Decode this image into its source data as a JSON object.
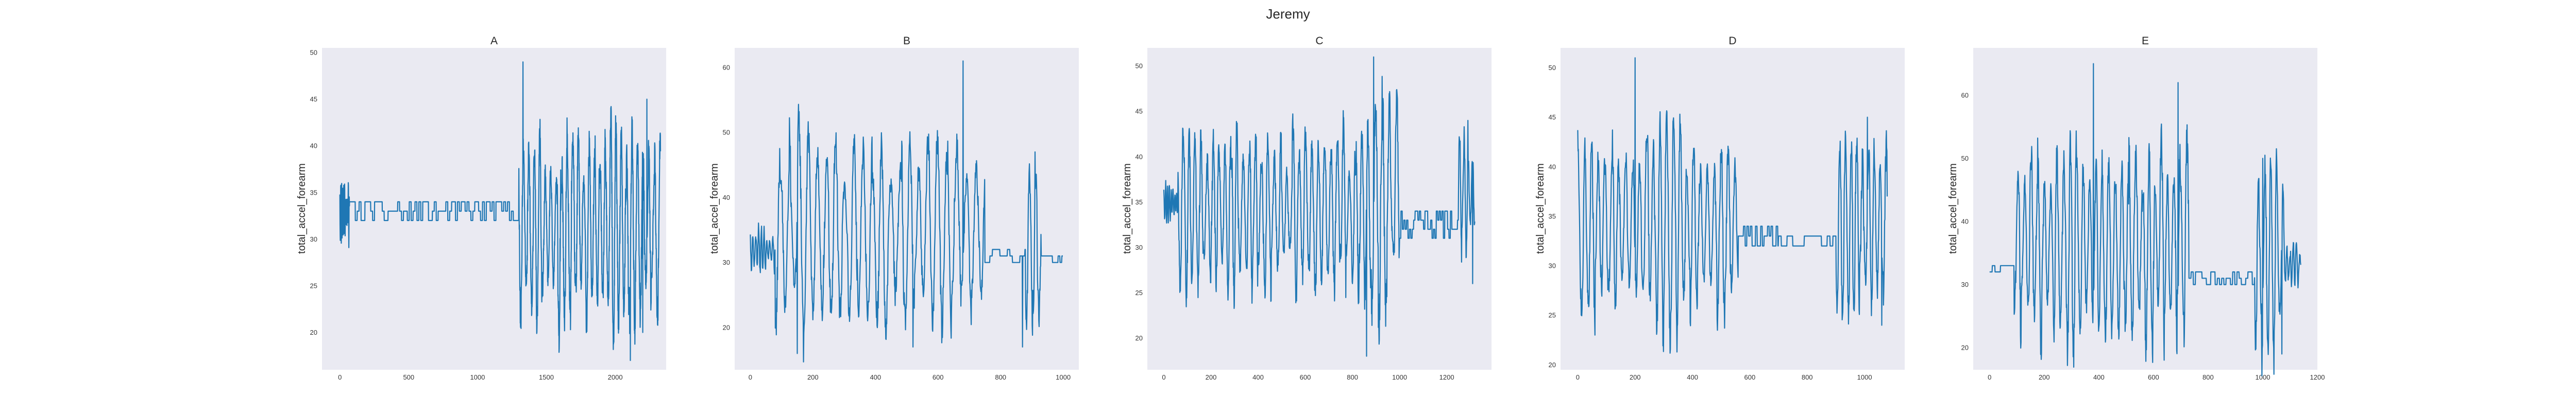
{
  "figure_title": "Jeremy",
  "colors": {
    "axes_background": "#eaeaf2",
    "series_line": "#1f77b4",
    "text": "#262626"
  },
  "chart_data": [
    {
      "type": "line",
      "title": "A",
      "xlabel": "",
      "ylabel": "total_accel_forearm",
      "xlim": [
        -130,
        2370
      ],
      "ylim": [
        16,
        50.5
      ],
      "grid": false,
      "x_ticks": [
        0,
        500,
        1000,
        1500,
        2000
      ],
      "y_ticks": [
        20,
        25,
        30,
        35,
        40,
        45,
        50
      ],
      "n_points": 2330,
      "seed": 11,
      "series": [
        {
          "name": "",
          "segments": [
            {
              "x": [
                0,
                70
              ],
              "pattern": "osc",
              "center": 33,
              "amp": 3,
              "period": 7
            },
            {
              "x": [
                70,
                1300
              ],
              "pattern": "steps",
              "levels": [
                32,
                33,
                34
              ],
              "hold": 14
            },
            {
              "x": [
                1300,
                2330
              ],
              "pattern": "osc",
              "center": 31,
              "amp": 10,
              "period": 40
            }
          ],
          "anchors": [
            [
              1330,
              49
            ],
            [
              1310,
              21
            ],
            [
              2110,
              17
            ],
            [
              2200,
              20
            ],
            [
              2230,
              45
            ]
          ]
        }
      ]
    },
    {
      "type": "line",
      "title": "B",
      "xlabel": "",
      "ylabel": "total_accel_forearm",
      "xlim": [
        -50,
        1050
      ],
      "ylim": [
        13.5,
        63
      ],
      "grid": false,
      "x_ticks": [
        0,
        200,
        400,
        600,
        800,
        1000
      ],
      "y_ticks": [
        20,
        30,
        40,
        50,
        60
      ],
      "n_points": 1000,
      "seed": 23,
      "series": [
        {
          "name": "",
          "segments": [
            {
              "x": [
                0,
                80
              ],
              "pattern": "osc",
              "center": 32,
              "amp": 3,
              "period": 9
            },
            {
              "x": [
                80,
                750
              ],
              "pattern": "osc",
              "center": 35,
              "amp": 15,
              "period": 30
            },
            {
              "x": [
                750,
                880
              ],
              "pattern": "steps",
              "levels": [
                30,
                31,
                32
              ],
              "hold": 8
            },
            {
              "x": [
                880,
                930
              ],
              "pattern": "osc",
              "center": 32,
              "amp": 12,
              "period": 20
            },
            {
              "x": [
                930,
                1000
              ],
              "pattern": "steps",
              "levels": [
                30,
                31
              ],
              "hold": 6
            }
          ],
          "anchors": [
            [
              680,
              61
            ],
            [
              150,
              16
            ],
            [
              520,
              17
            ],
            [
              870,
              17
            ],
            [
              910,
              47
            ]
          ]
        }
      ]
    },
    {
      "type": "line",
      "title": "C",
      "xlabel": "",
      "ylabel": "total_accel_forearm",
      "xlim": [
        -70,
        1390
      ],
      "ylim": [
        16.5,
        52
      ],
      "grid": false,
      "x_ticks": [
        0,
        200,
        400,
        600,
        800,
        1000,
        1200
      ],
      "y_ticks": [
        20,
        25,
        30,
        35,
        40,
        45,
        50
      ],
      "n_points": 1320,
      "seed": 37,
      "series": [
        {
          "name": "",
          "segments": [
            {
              "x": [
                0,
                60
              ],
              "pattern": "osc",
              "center": 35,
              "amp": 2,
              "period": 8
            },
            {
              "x": [
                60,
                880
              ],
              "pattern": "osc",
              "center": 34,
              "amp": 8.5,
              "period": 26
            },
            {
              "x": [
                880,
                1000
              ],
              "pattern": "osc",
              "center": 36,
              "amp": 13,
              "period": 30
            },
            {
              "x": [
                1000,
                1250
              ],
              "pattern": "steps",
              "levels": [
                31,
                32,
                33,
                34
              ],
              "hold": 6
            },
            {
              "x": [
                1250,
                1320
              ],
              "pattern": "osc",
              "center": 36,
              "amp": 8,
              "period": 18
            }
          ],
          "anchors": [
            [
              890,
              51
            ],
            [
              860,
              18
            ],
            [
              1310,
              26
            ],
            [
              1290,
              44
            ]
          ]
        }
      ]
    },
    {
      "type": "line",
      "title": "D",
      "xlabel": "",
      "ylabel": "total_accel_forearm",
      "xlim": [
        -60,
        1140
      ],
      "ylim": [
        19.5,
        52
      ],
      "grid": false,
      "x_ticks": [
        0,
        200,
        400,
        600,
        800,
        1000
      ],
      "y_ticks": [
        20,
        25,
        30,
        35,
        40,
        45,
        50
      ],
      "n_points": 1080,
      "seed": 53,
      "series": [
        {
          "name": "",
          "segments": [
            {
              "x": [
                0,
                560
              ],
              "pattern": "osc",
              "center": 34,
              "amp": 9.5,
              "period": 24
            },
            {
              "x": [
                560,
                700
              ],
              "pattern": "steps",
              "levels": [
                32,
                33,
                34
              ],
              "hold": 6
            },
            {
              "x": [
                700,
                900
              ],
              "pattern": "steps",
              "levels": [
                32,
                33
              ],
              "hold": 10
            },
            {
              "x": [
                900,
                1080
              ],
              "pattern": "osc",
              "center": 34,
              "amp": 8.5,
              "period": 20
            }
          ],
          "anchors": [
            [
              200,
              51
            ],
            [
              60,
              23
            ],
            [
              1010,
              45
            ],
            [
              1060,
              24
            ],
            [
              1080,
              37
            ]
          ]
        }
      ]
    },
    {
      "type": "line",
      "title": "E",
      "xlabel": "",
      "ylabel": "total_accel_forearm",
      "xlim": [
        -60,
        1200
      ],
      "ylim": [
        16.5,
        67.5
      ],
      "grid": false,
      "x_ticks": [
        0,
        200,
        400,
        600,
        800,
        1000,
        1200
      ],
      "y_ticks": [
        20,
        30,
        40,
        50,
        60
      ],
      "n_points": 1140,
      "seed": 71,
      "series": [
        {
          "name": "",
          "segments": [
            {
              "x": [
                0,
                90
              ],
              "pattern": "steps",
              "levels": [
                32,
                33
              ],
              "hold": 10
            },
            {
              "x": [
                90,
                730
              ],
              "pattern": "osc",
              "center": 36,
              "amp": 15,
              "period": 24
            },
            {
              "x": [
                730,
                970
              ],
              "pattern": "steps",
              "levels": [
                30,
                31,
                32
              ],
              "hold": 8
            },
            {
              "x": [
                970,
                1080
              ],
              "pattern": "osc",
              "center": 34,
              "amp": 14,
              "period": 22
            },
            {
              "x": [
                1080,
                1140
              ],
              "pattern": "osc",
              "center": 33,
              "amp": 3,
              "period": 12
            }
          ],
          "anchors": [
            [
              380,
              65
            ],
            [
              690,
              62
            ],
            [
              1070,
              19
            ],
            [
              1000,
              50
            ]
          ]
        }
      ]
    }
  ]
}
